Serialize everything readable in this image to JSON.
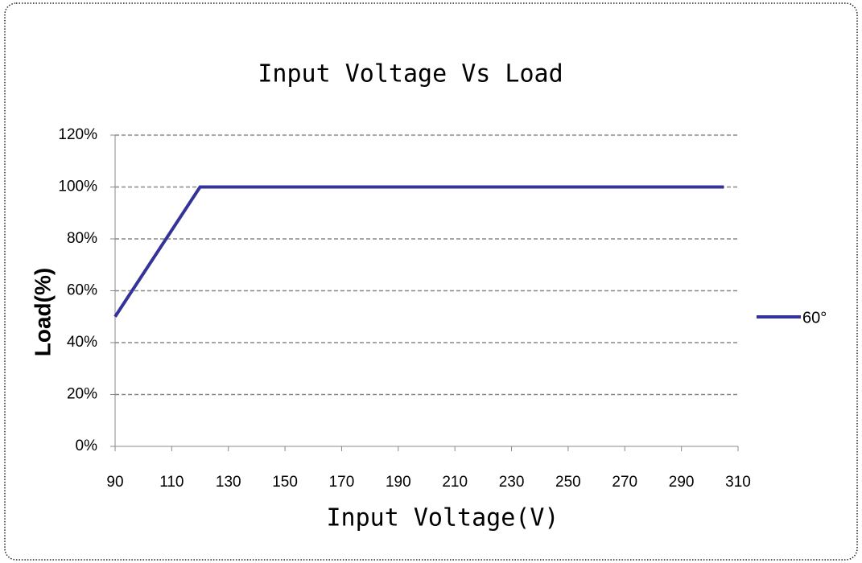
{
  "chart_data": {
    "type": "line",
    "title": "Input Voltage Vs Load",
    "x_label": "Input Voltage(V)",
    "y_label": "Load(%)",
    "x": [
      90,
      120,
      305
    ],
    "series": [
      {
        "name": "60°",
        "color": "#333399",
        "values": [
          50,
          100,
          100
        ]
      }
    ],
    "xlim": [
      90,
      310
    ],
    "xticks": [
      90,
      110,
      130,
      150,
      170,
      190,
      210,
      230,
      250,
      270,
      290,
      310
    ],
    "ylim": [
      0,
      120
    ],
    "yticks": [
      {
        "value": 0,
        "label": "0%"
      },
      {
        "value": 20,
        "label": "20%"
      },
      {
        "value": 40,
        "label": "40%"
      },
      {
        "value": 60,
        "label": "60%"
      },
      {
        "value": 80,
        "label": "80%"
      },
      {
        "value": 100,
        "label": "100%"
      },
      {
        "value": 120,
        "label": "120%"
      }
    ],
    "grid": true,
    "legend": "right"
  }
}
